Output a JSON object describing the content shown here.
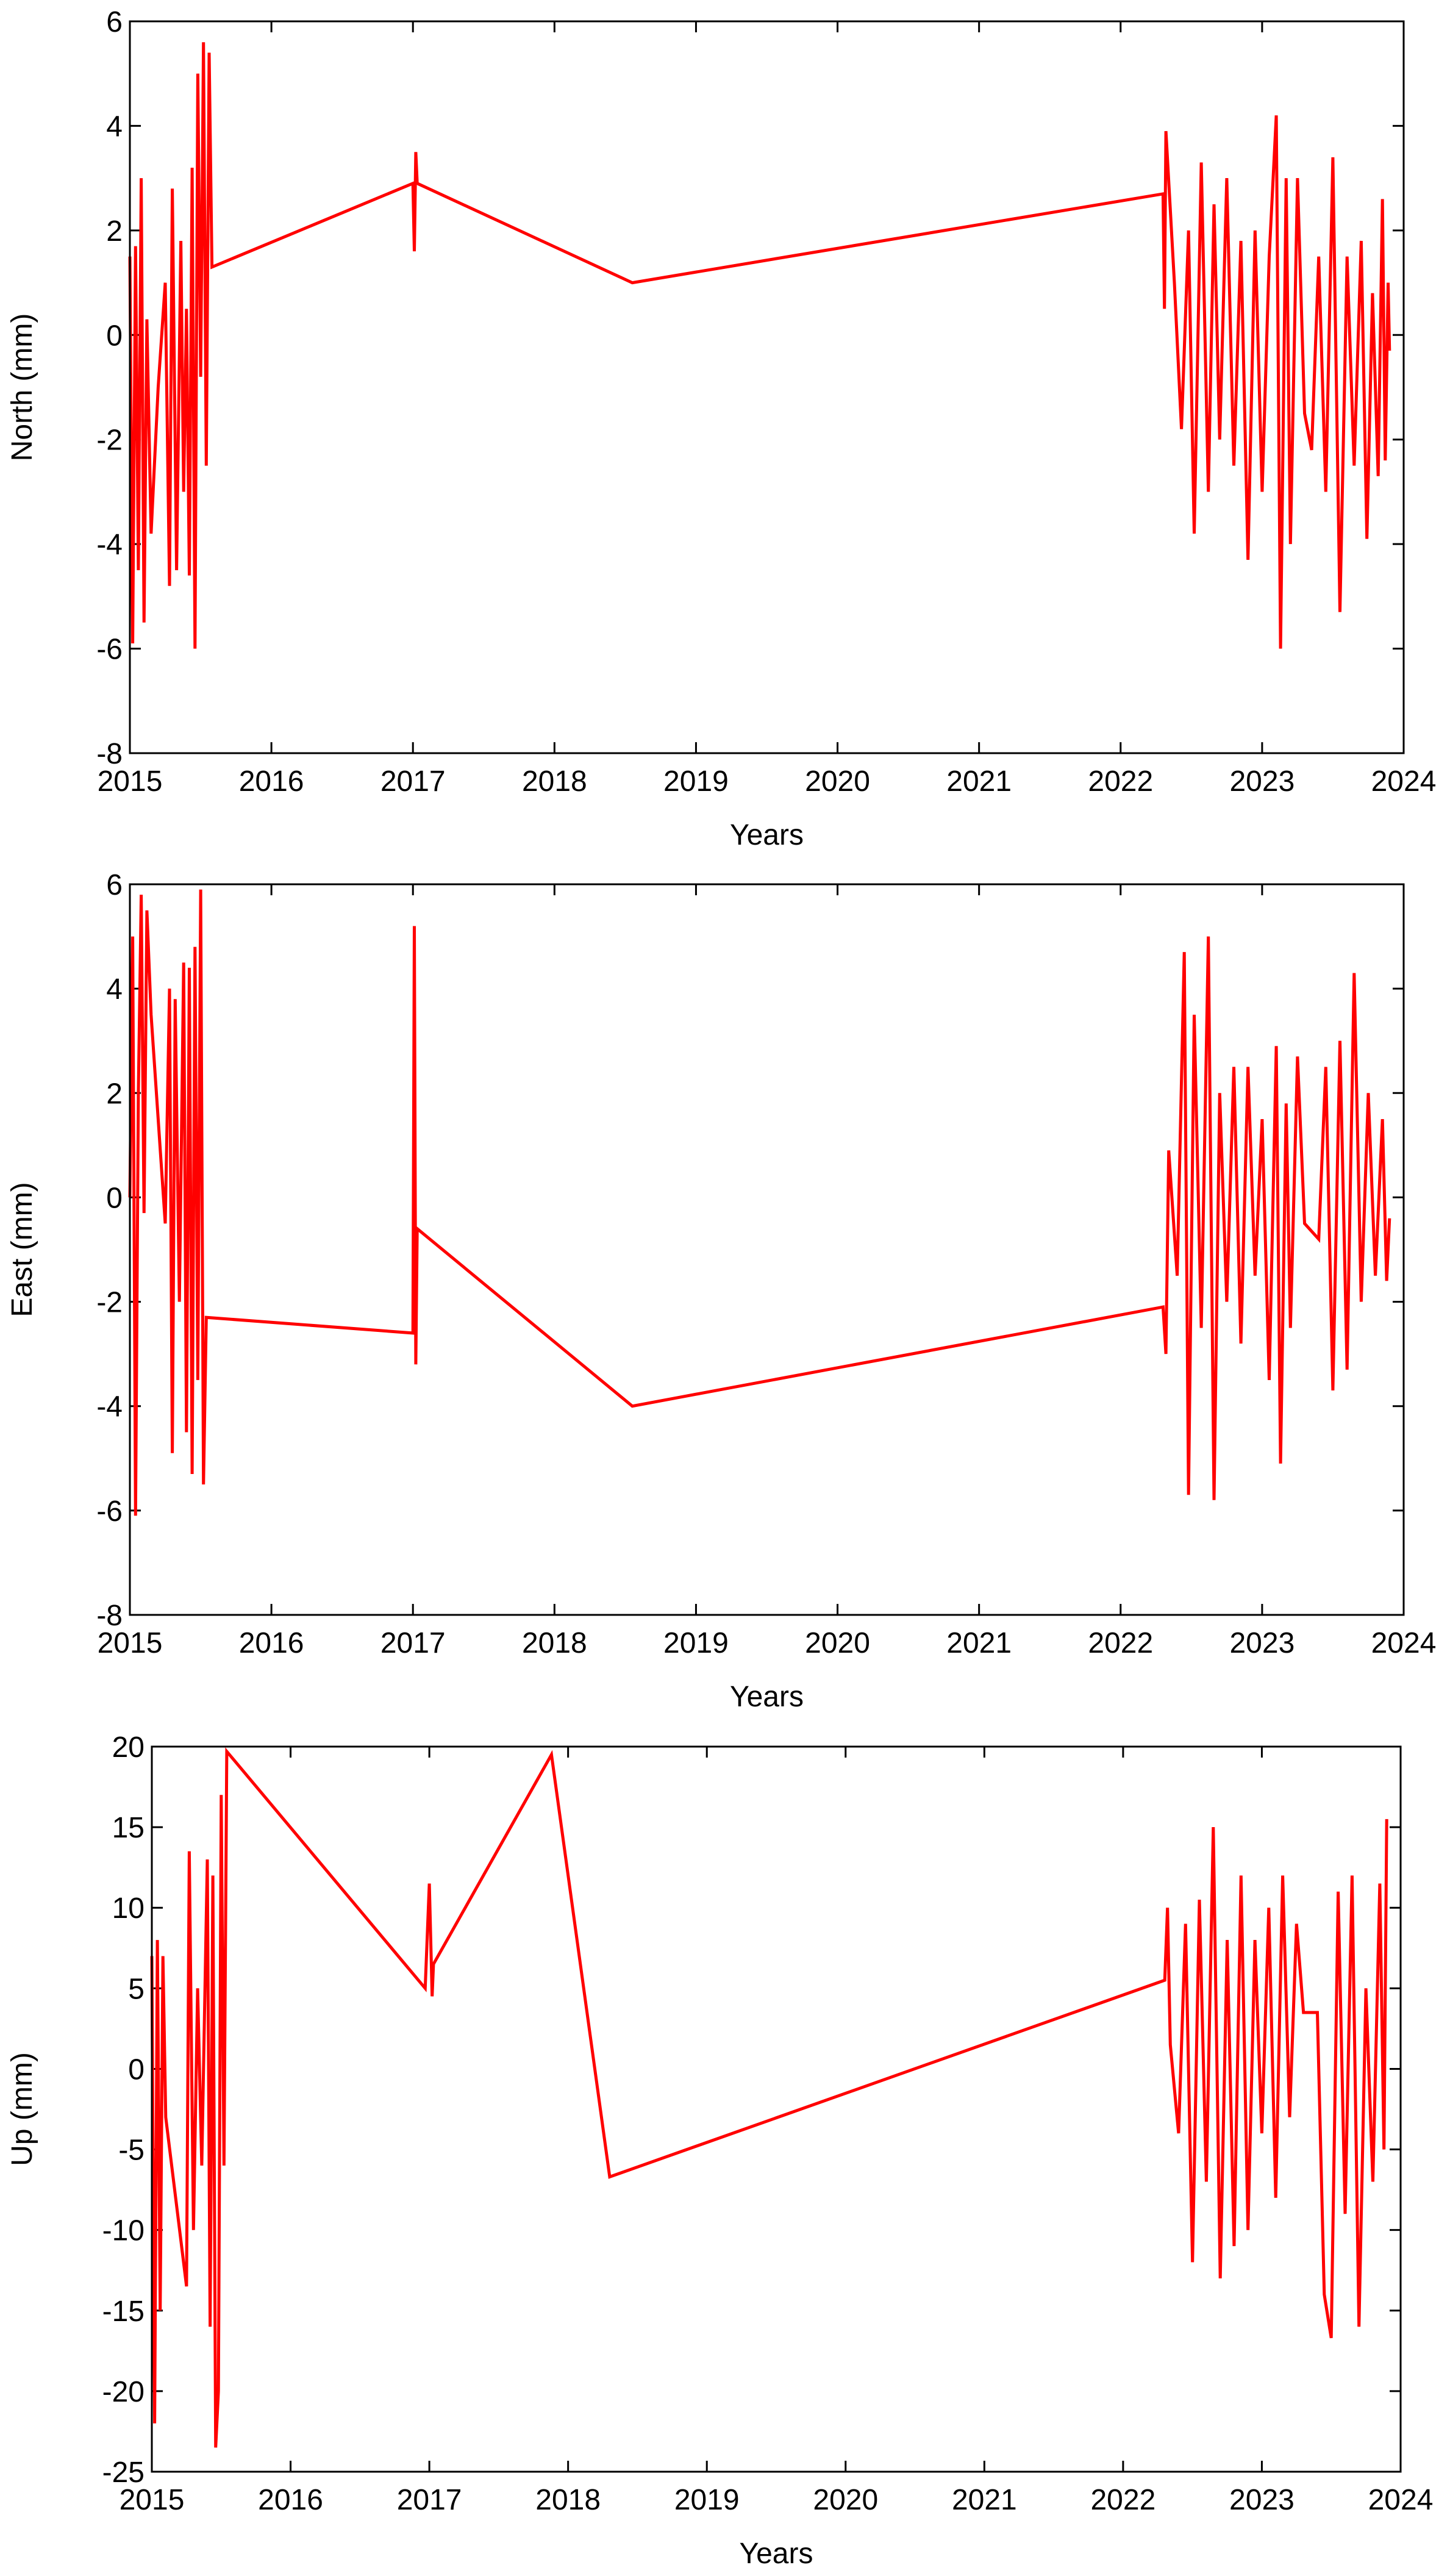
{
  "chart_data": [
    {
      "type": "line",
      "ylabel": "North (mm)",
      "xlabel": "Years",
      "color": "#ff0000",
      "xlim": [
        2015,
        2024
      ],
      "xticks": [
        2015,
        2016,
        2017,
        2018,
        2019,
        2020,
        2021,
        2022,
        2023,
        2024
      ],
      "ylim": [
        -8,
        6
      ],
      "yticks": [
        -8,
        -6,
        -4,
        -2,
        0,
        2,
        4,
        6
      ],
      "x": [
        2015.0,
        2015.02,
        2015.04,
        2015.06,
        2015.08,
        2015.1,
        2015.12,
        2015.15,
        2015.2,
        2015.25,
        2015.28,
        2015.3,
        2015.33,
        2015.36,
        2015.38,
        2015.4,
        2015.42,
        2015.44,
        2015.46,
        2015.48,
        2015.5,
        2015.52,
        2015.54,
        2015.56,
        2015.58,
        2017.0,
        2017.01,
        2017.02,
        2017.03,
        2018.55,
        2022.3,
        2022.31,
        2022.32,
        2022.38,
        2022.43,
        2022.48,
        2022.52,
        2022.57,
        2022.62,
        2022.66,
        2022.7,
        2022.75,
        2022.8,
        2022.85,
        2022.9,
        2022.95,
        2023.0,
        2023.05,
        2023.1,
        2023.13,
        2023.17,
        2023.2,
        2023.25,
        2023.3,
        2023.35,
        2023.4,
        2023.45,
        2023.5,
        2023.55,
        2023.6,
        2023.65,
        2023.7,
        2023.74,
        2023.78,
        2023.82,
        2023.85,
        2023.87,
        2023.89,
        2023.9
      ],
      "values": [
        1.5,
        -5.9,
        1.7,
        -4.5,
        3.0,
        -5.5,
        0.3,
        -3.8,
        -1.0,
        1.0,
        -4.8,
        2.8,
        -4.5,
        1.8,
        -3.0,
        0.5,
        -4.6,
        3.2,
        -6.0,
        5.0,
        -0.8,
        5.6,
        -2.5,
        5.4,
        1.3,
        2.9,
        1.6,
        3.5,
        2.9,
        1.0,
        2.7,
        0.5,
        3.9,
        1.0,
        -1.8,
        2.0,
        -3.8,
        3.3,
        -3.0,
        2.5,
        -2.0,
        3.0,
        -2.5,
        1.8,
        -4.3,
        2.0,
        -3.0,
        1.5,
        4.2,
        -6.0,
        3.0,
        -4.0,
        3.0,
        -1.5,
        -2.2,
        1.5,
        -3.0,
        3.4,
        -5.3,
        1.5,
        -2.5,
        1.8,
        -3.9,
        0.8,
        -2.7,
        2.6,
        -2.4,
        1.0,
        -0.3
      ]
    },
    {
      "type": "line",
      "ylabel": "East (mm)",
      "xlabel": "Years",
      "color": "#ff0000",
      "xlim": [
        2015,
        2024
      ],
      "xticks": [
        2015,
        2016,
        2017,
        2018,
        2019,
        2020,
        2021,
        2022,
        2023,
        2024
      ],
      "ylim": [
        -8,
        6
      ],
      "yticks": [
        -8,
        -6,
        -4,
        -2,
        0,
        2,
        4,
        6
      ],
      "x": [
        2015.0,
        2015.02,
        2015.04,
        2015.06,
        2015.08,
        2015.1,
        2015.12,
        2015.15,
        2015.25,
        2015.28,
        2015.3,
        2015.32,
        2015.35,
        2015.38,
        2015.4,
        2015.42,
        2015.44,
        2015.46,
        2015.48,
        2015.5,
        2015.52,
        2015.54,
        2017.0,
        2017.01,
        2017.02,
        2017.03,
        2018.55,
        2022.3,
        2022.32,
        2022.34,
        2022.4,
        2022.45,
        2022.48,
        2022.52,
        2022.57,
        2022.62,
        2022.66,
        2022.7,
        2022.75,
        2022.8,
        2022.85,
        2022.9,
        2022.95,
        2023.0,
        2023.05,
        2023.1,
        2023.13,
        2023.17,
        2023.2,
        2023.25,
        2023.3,
        2023.4,
        2023.45,
        2023.5,
        2023.55,
        2023.6,
        2023.65,
        2023.7,
        2023.75,
        2023.8,
        2023.85,
        2023.88,
        2023.9
      ],
      "values": [
        0,
        5.0,
        -6.1,
        2.0,
        5.8,
        -0.3,
        5.5,
        3.5,
        -0.5,
        4.0,
        -4.9,
        3.8,
        -2.0,
        4.5,
        -4.5,
        4.4,
        -5.3,
        4.8,
        -3.5,
        5.9,
        -5.5,
        -2.3,
        -2.6,
        5.2,
        -3.2,
        -0.6,
        -4.0,
        -2.1,
        -3.0,
        0.9,
        -1.5,
        4.7,
        -5.7,
        3.5,
        -2.5,
        5.0,
        -5.8,
        2.0,
        -2.0,
        2.5,
        -2.8,
        2.5,
        -1.5,
        1.5,
        -3.5,
        2.9,
        -5.1,
        1.8,
        -2.5,
        2.7,
        -0.5,
        -0.8,
        2.5,
        -3.7,
        3.0,
        -3.3,
        4.3,
        -2.0,
        2.0,
        -1.5,
        1.5,
        -1.6,
        -0.4
      ]
    },
    {
      "type": "line",
      "ylabel": "Up (mm)",
      "xlabel": "Years",
      "color": "#ff0000",
      "xlim": [
        2015,
        2024
      ],
      "xticks": [
        2015,
        2016,
        2017,
        2018,
        2019,
        2020,
        2021,
        2022,
        2023,
        2024
      ],
      "ylim": [
        -25,
        20
      ],
      "yticks": [
        -25,
        -20,
        -15,
        -10,
        -5,
        0,
        5,
        10,
        15,
        20
      ],
      "x": [
        2015.0,
        2015.02,
        2015.04,
        2015.06,
        2015.08,
        2015.1,
        2015.25,
        2015.27,
        2015.3,
        2015.33,
        2015.36,
        2015.4,
        2015.42,
        2015.44,
        2015.46,
        2015.48,
        2015.5,
        2015.52,
        2015.54,
        2016.97,
        2017.0,
        2017.02,
        2017.03,
        2017.88,
        2018.3,
        2022.3,
        2022.32,
        2022.34,
        2022.4,
        2022.45,
        2022.5,
        2022.55,
        2022.6,
        2022.65,
        2022.7,
        2022.75,
        2022.8,
        2022.85,
        2022.9,
        2022.95,
        2023.0,
        2023.05,
        2023.1,
        2023.15,
        2023.2,
        2023.25,
        2023.3,
        2023.4,
        2023.45,
        2023.5,
        2023.55,
        2023.6,
        2023.65,
        2023.7,
        2023.75,
        2023.8,
        2023.85,
        2023.88,
        2023.9
      ],
      "values": [
        7,
        -22,
        8,
        -15,
        7,
        -3,
        -13.5,
        13.5,
        -10,
        5,
        -6,
        13,
        -16,
        12,
        -23.5,
        -20,
        17,
        -6,
        19.7,
        5,
        11.5,
        4.5,
        6.5,
        19.5,
        -6.7,
        5.5,
        10,
        1.5,
        -4,
        9,
        -12,
        10.5,
        -7,
        15,
        -13,
        8,
        -11,
        12,
        -10,
        8,
        -4,
        10,
        -8,
        12,
        -3,
        9,
        3.5,
        3.5,
        -14,
        -16.7,
        11,
        -9,
        12,
        -16,
        5,
        -7,
        11.5,
        -5,
        15.5
      ]
    }
  ]
}
